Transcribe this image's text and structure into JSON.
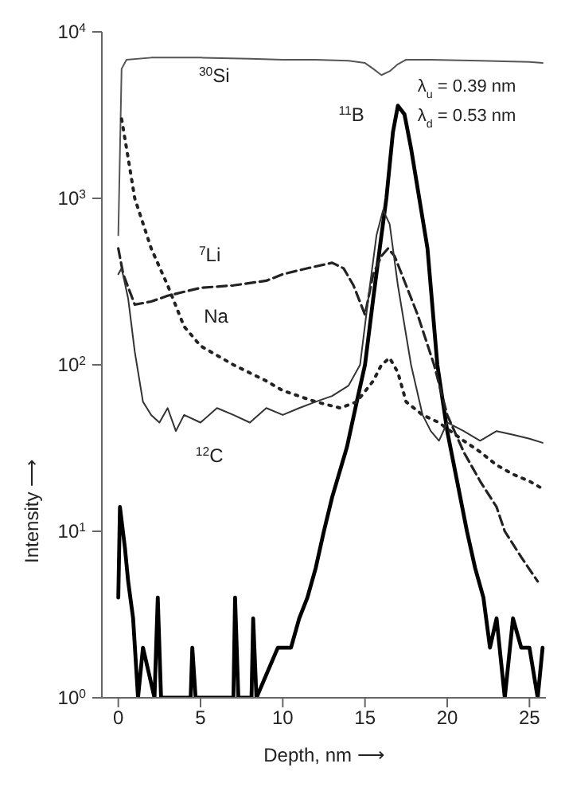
{
  "chart_data": {
    "type": "line",
    "xlabel": "Depth, nm ⟶",
    "ylabel": "Intensity ⟶",
    "log": "y",
    "xlim": [
      -1,
      26
    ],
    "xticks": [
      0,
      5,
      10,
      15,
      20,
      25
    ],
    "ylim": [
      1,
      10000
    ],
    "yticks": [
      {
        "value": 1,
        "label": "10$^{0}$"
      },
      {
        "value": 10,
        "label": "10$^{1}$"
      },
      {
        "value": 100,
        "label": "10$^{2}$"
      },
      {
        "value": 1000,
        "label": "10$^{3}$"
      },
      {
        "value": 10000,
        "label": "10$^{4}$"
      }
    ],
    "annotations": [
      "λ$_{u}$ = 0.39 nm",
      "λ$_{d}$ = 0.53 nm"
    ],
    "series": [
      {
        "name": "$^{30}$Si",
        "color": "#555555",
        "line_style": "solid",
        "x": [
          0,
          0.2,
          0.5,
          2,
          5,
          8,
          10,
          12,
          14,
          15,
          15.5,
          16,
          16.5,
          17,
          17.5,
          19,
          22,
          25,
          25.8
        ],
        "values": [
          600,
          6000,
          6800,
          7000,
          7000,
          6900,
          6800,
          6800,
          6700,
          6500,
          6000,
          5500,
          5800,
          6400,
          6800,
          6800,
          6700,
          6600,
          6500
        ]
      },
      {
        "name": "$^{11}$B",
        "color": "#000000",
        "line_style": "solid",
        "x": [
          0,
          0.1,
          0.4,
          0.6,
          0.9,
          1.2,
          1.5,
          2.2,
          2.4,
          2.6,
          4.4,
          4.5,
          4.7,
          7,
          7.1,
          7.3,
          8.1,
          8.2,
          8.4,
          9.7,
          10,
          10.5,
          11,
          11.5,
          12,
          12.5,
          13,
          13.9,
          14.5,
          15,
          15.5,
          16,
          16.3,
          16.7,
          17,
          17.4,
          17.8,
          18.3,
          18.8,
          19.4,
          20,
          20.6,
          21.2,
          21.7,
          22.2,
          22.6,
          23,
          23.5,
          24,
          24.5,
          25,
          25.5,
          25.8
        ],
        "values": [
          4,
          14,
          8,
          5,
          3,
          1,
          2,
          1,
          4,
          1,
          1,
          2,
          1,
          1,
          4,
          1,
          1,
          3,
          1,
          2,
          2,
          2,
          3,
          4,
          6,
          10,
          16,
          32,
          60,
          100,
          250,
          600,
          1000,
          2500,
          3600,
          3200,
          2000,
          1000,
          500,
          100,
          40,
          20,
          10,
          6,
          4,
          2,
          3,
          1,
          3,
          2,
          2,
          1,
          2
        ]
      },
      {
        "name": "$^{7}$Li",
        "color": "#222222",
        "line_style": "dashed",
        "x": [
          0,
          0.3,
          1,
          2,
          3,
          5,
          7,
          9,
          10,
          11,
          12,
          13,
          13.7,
          14.3,
          15,
          15.5,
          16,
          16.4,
          16.8,
          17.5,
          18.2,
          19.2,
          20,
          21,
          22,
          23,
          23.5,
          24.5,
          25.5
        ],
        "values": [
          500,
          350,
          230,
          240,
          260,
          290,
          300,
          320,
          350,
          370,
          390,
          410,
          380,
          300,
          200,
          350,
          450,
          500,
          450,
          300,
          200,
          100,
          50,
          30,
          20,
          14,
          10,
          7,
          5
        ]
      },
      {
        "name": "Na",
        "color": "#222222",
        "line_style": "dotted",
        "x": [
          0.2,
          0.5,
          1,
          2,
          3,
          4,
          5,
          7,
          9,
          10,
          12,
          13.5,
          14.5,
          15.5,
          16,
          16.5,
          17,
          17.5,
          18.5,
          19.5,
          21,
          22,
          23,
          24,
          25,
          25.8
        ],
        "values": [
          3000,
          2000,
          1000,
          500,
          300,
          170,
          130,
          100,
          80,
          70,
          60,
          55,
          60,
          80,
          100,
          110,
          90,
          60,
          50,
          45,
          35,
          30,
          25,
          22,
          20,
          18
        ]
      },
      {
        "name": "$^{12}$C",
        "color": "#333333",
        "line_style": "solid",
        "x": [
          0,
          0.2,
          0.6,
          1,
          1.5,
          2,
          2.5,
          3,
          3.5,
          4,
          5,
          6,
          7,
          8,
          9,
          10,
          11,
          12,
          13,
          14,
          14.7,
          15.3,
          15.7,
          16.1,
          16.5,
          17,
          17.8,
          18.5,
          19,
          19.5,
          20,
          21,
          22,
          23,
          24,
          25,
          25.8
        ],
        "values": [
          350,
          380,
          250,
          120,
          60,
          50,
          45,
          55,
          40,
          50,
          45,
          55,
          50,
          45,
          55,
          50,
          55,
          60,
          65,
          75,
          100,
          300,
          600,
          850,
          700,
          300,
          100,
          50,
          40,
          35,
          45,
          40,
          35,
          40,
          38,
          36,
          34
        ]
      }
    ]
  }
}
